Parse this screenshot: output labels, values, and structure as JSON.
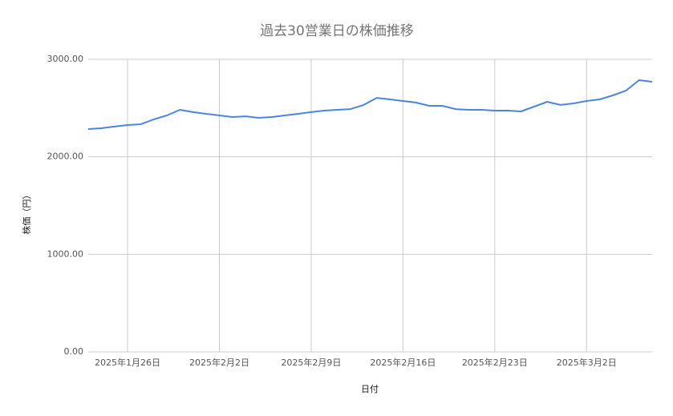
{
  "chart_data": {
    "type": "line",
    "title": "過去30営業日の株価推移",
    "x_label": "日付",
    "y_label": "株価（円）",
    "x": [
      "2025-01-23",
      "2025-01-24",
      "2025-01-25",
      "2025-01-26",
      "2025-01-27",
      "2025-01-28",
      "2025-01-29",
      "2025-01-30",
      "2025-01-31",
      "2025-02-01",
      "2025-02-02",
      "2025-02-03",
      "2025-02-04",
      "2025-02-05",
      "2025-02-06",
      "2025-02-07",
      "2025-02-08",
      "2025-02-09",
      "2025-02-10",
      "2025-02-11",
      "2025-02-12",
      "2025-02-13",
      "2025-02-14",
      "2025-02-15",
      "2025-02-16",
      "2025-02-17",
      "2025-02-18",
      "2025-02-19",
      "2025-02-20",
      "2025-02-21",
      "2025-02-22",
      "2025-02-23",
      "2025-02-24",
      "2025-02-25",
      "2025-02-26",
      "2025-02-27",
      "2025-02-28",
      "2025-03-01",
      "2025-03-02",
      "2025-03-03",
      "2025-03-04",
      "2025-03-05",
      "2025-03-06",
      "2025-03-07"
    ],
    "series": [
      {
        "name": "株価",
        "color": "#4a86e0",
        "values": [
          2285,
          2293,
          2310,
          2326,
          2334,
          2384,
          2425,
          2482,
          2458,
          2441,
          2425,
          2408,
          2416,
          2400,
          2408,
          2425,
          2441,
          2458,
          2474,
          2482,
          2490,
          2532,
          2605,
          2589,
          2573,
          2556,
          2523,
          2523,
          2490,
          2482,
          2482,
          2474,
          2474,
          2466,
          2515,
          2564,
          2532,
          2548,
          2573,
          2589,
          2630,
          2679,
          2786,
          2770
        ]
      }
    ],
    "xlim": [
      "2025-01-23",
      "2025-03-07"
    ],
    "xticks": [
      {
        "value": "2025-01-26",
        "label": "2025年1月26日"
      },
      {
        "value": "2025-02-02",
        "label": "2025年2月2日"
      },
      {
        "value": "2025-02-09",
        "label": "2025年2月9日"
      },
      {
        "value": "2025-02-16",
        "label": "2025年2月16日"
      },
      {
        "value": "2025-02-23",
        "label": "2025年2月23日"
      },
      {
        "value": "2025-03-02",
        "label": "2025年3月2日"
      }
    ],
    "ylim": [
      0,
      3000
    ],
    "yticks": [
      {
        "value": 0,
        "label": "0.00"
      },
      {
        "value": 1000,
        "label": "1000.00"
      },
      {
        "value": 2000,
        "label": "2000.00"
      },
      {
        "value": 3000,
        "label": "3000.00"
      }
    ],
    "grid": true
  }
}
